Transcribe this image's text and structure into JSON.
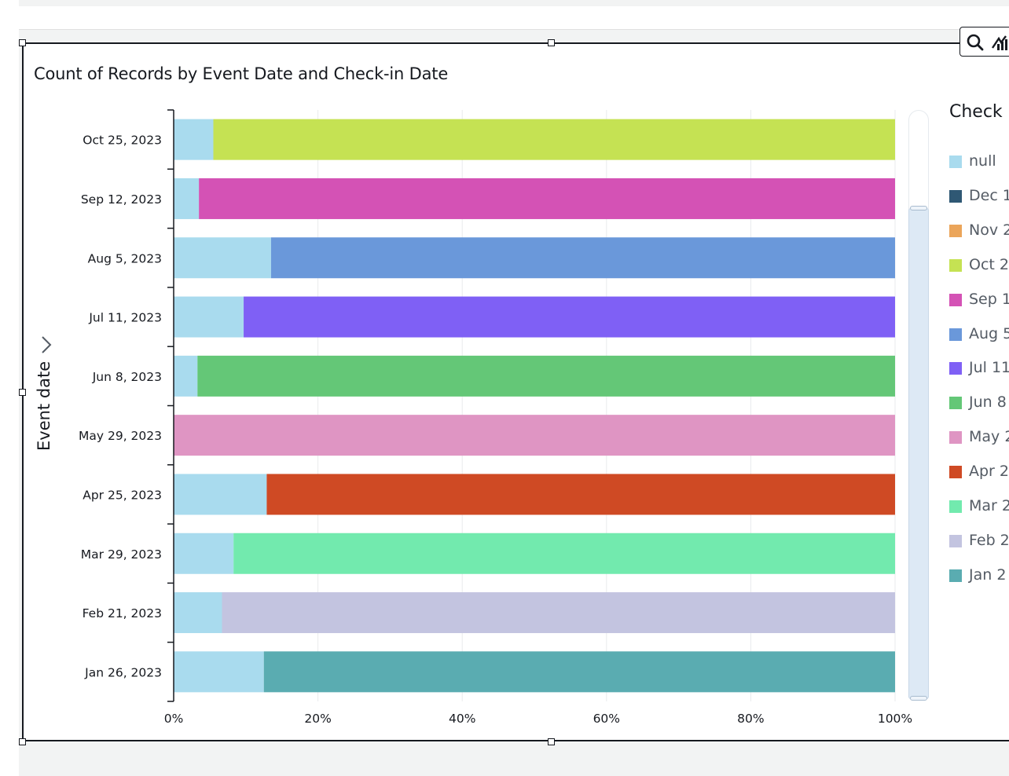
{
  "chart_data": {
    "type": "bar",
    "orientation": "horizontal",
    "stacking": "percent",
    "title": "Count of Records by Event Date and Check-in Date",
    "ylabel": "Event date",
    "xlabel": "",
    "xlim": [
      0,
      100
    ],
    "xticks": [
      "0%",
      "20%",
      "40%",
      "60%",
      "80%",
      "100%"
    ],
    "grid": true,
    "categories": [
      "Oct 25, 2023",
      "Sep 12, 2023",
      "Aug 5, 2023",
      "Jul 11, 2023",
      "Jun 8, 2023",
      "May 29, 2023",
      "Apr 25, 2023",
      "Mar 29, 2023",
      "Feb 21, 2023",
      "Jan 26, 2023"
    ],
    "null_share": [
      5.5,
      3.5,
      13.5,
      9.7,
      3.3,
      0,
      12.9,
      8.3,
      6.7,
      12.5
    ],
    "segments": [
      {
        "null": 5.5,
        "other": 94.5,
        "other_series": "Oct 2",
        "color": "#c5e253"
      },
      {
        "null": 3.5,
        "other": 96.5,
        "other_series": "Sep 1",
        "color": "#d452b5"
      },
      {
        "null": 13.5,
        "other": 86.5,
        "other_series": "Aug 5",
        "color": "#6a98da"
      },
      {
        "null": 9.7,
        "other": 90.3,
        "other_series": "Jul 11",
        "color": "#7f60f5"
      },
      {
        "null": 3.3,
        "other": 96.7,
        "other_series": "Jun 8",
        "color": "#64c777"
      },
      {
        "null": 0,
        "other": 100,
        "other_series": "May 2",
        "color": "#df95c3"
      },
      {
        "null": 12.9,
        "other": 87.1,
        "other_series": "Apr 2",
        "color": "#cf4a24"
      },
      {
        "null": 8.3,
        "other": 91.7,
        "other_series": "Mar 2",
        "color": "#72eaae"
      },
      {
        "null": 6.7,
        "other": 93.3,
        "other_series": "Feb 2",
        "color": "#c3c4e0"
      },
      {
        "null": 12.5,
        "other": 87.5,
        "other_series": "Jan 2",
        "color": "#5aacb1"
      }
    ],
    "legend": {
      "title": "Check I",
      "position": "right",
      "items": [
        {
          "label": "null",
          "color": "#a9dbee"
        },
        {
          "label": "Dec 1",
          "color": "#2f5874"
        },
        {
          "label": "Nov 2",
          "color": "#eba55a"
        },
        {
          "label": "Oct 2",
          "color": "#c5e253"
        },
        {
          "label": "Sep 1",
          "color": "#d452b5"
        },
        {
          "label": "Aug 5",
          "color": "#6a98da"
        },
        {
          "label": "Jul 11",
          "color": "#7f60f5"
        },
        {
          "label": "Jun 8",
          "color": "#64c777"
        },
        {
          "label": "May 2",
          "color": "#df95c3"
        },
        {
          "label": "Apr 2",
          "color": "#cf4a24"
        },
        {
          "label": "Mar 2",
          "color": "#72eaae"
        },
        {
          "label": "Feb 2",
          "color": "#c3c4e0"
        },
        {
          "label": "Jan 2",
          "color": "#5aacb1"
        }
      ]
    }
  },
  "toolbar": {
    "icons": [
      "search-icon",
      "drill-chart-icon"
    ]
  }
}
